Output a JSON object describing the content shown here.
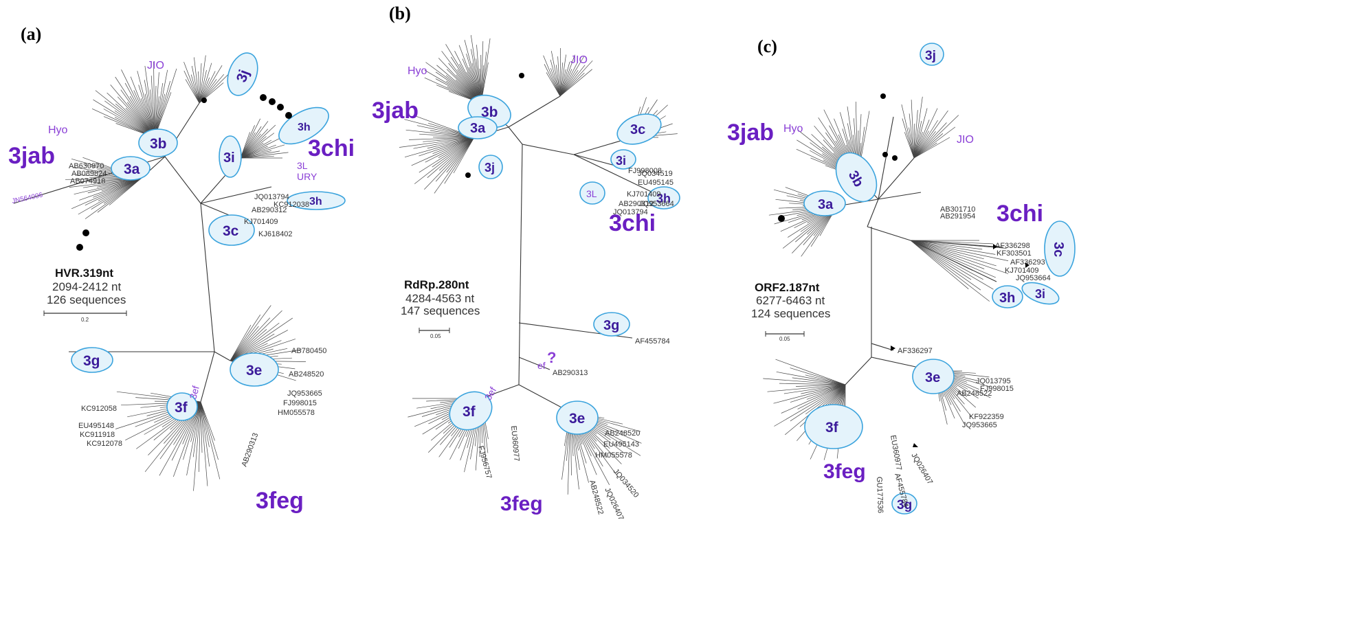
{
  "colors": {
    "group_label": "#6a1fc2",
    "subtype_label": "#3b1a9a",
    "minor_label": "#8a3fd6",
    "ellipse_fill": "#e4f3fb",
    "ellipse_stroke": "#3aa3dd",
    "branch": "#333333"
  },
  "panels": [
    {
      "id": "a",
      "letter": "(a)",
      "region": "HVR.319nt",
      "positions": "2094-2412 nt",
      "sequences": "126 sequences",
      "scale_label": "0.2",
      "group_labels": [
        "3jab",
        "3chi",
        "3feg"
      ],
      "subtypes": [
        "3a",
        "3b",
        "3c",
        "3f",
        "3e",
        "3g",
        "3h",
        "3h",
        "3i",
        "3j"
      ],
      "minor_labels": [
        "JIO",
        "Hyo",
        "3L",
        "URY",
        "3ef"
      ],
      "outlier_leaf": "JN564006",
      "leaves": [
        "JQ013794",
        "KC912038",
        "AB290312",
        "KJ701409",
        "KJ618402",
        "AB780450",
        "AB248520",
        "KC912058",
        "EU495148",
        "KC911918",
        "KC912078",
        "JQ953665",
        "FJ998015",
        "HM055578",
        "AB290313",
        "AB630970",
        "AB089824",
        "AB074918"
      ]
    },
    {
      "id": "b",
      "letter": "(b)",
      "region": "RdRp.280nt",
      "positions": "4284-4563 nt",
      "sequences": "147 sequences",
      "scale_label": "0.05",
      "group_labels": [
        "3jab",
        "3chi",
        "3feg"
      ],
      "subtypes": [
        "3a",
        "3b",
        "3c",
        "3e",
        "3f",
        "3g",
        "3h",
        "3i",
        "3j"
      ],
      "minor_labels": [
        "JIO",
        "Hyo",
        "3L",
        "3ef",
        "ef",
        "?"
      ],
      "outlier_leaf": "AF455784",
      "leaves": [
        "AB290313",
        "JQ034519",
        "EU495145",
        "KJ701409",
        "FJ998008",
        "JQ953664",
        "AB290312",
        "JQ013794",
        "AB248520",
        "AB248522",
        "JQ026407",
        "EU495143",
        "HM055578",
        "JQ034520",
        "EU360977",
        "FJ956757"
      ]
    },
    {
      "id": "c",
      "letter": "(c)",
      "region": "ORF2.187nt",
      "positions": "6277-6463 nt",
      "sequences": "124 sequences",
      "scale_label": "0.05",
      "group_labels": [
        "3jab",
        "3chi",
        "3feg"
      ],
      "subtypes": [
        "3a",
        "3b",
        "3c",
        "3e",
        "3f",
        "3g",
        "3h",
        "3i",
        "3j"
      ],
      "minor_labels": [
        "JIO",
        "Hyo"
      ],
      "outlier_leaf": "AF336297",
      "leaves": [
        "AF336293",
        "AF336298",
        "KF303501",
        "KJ701409",
        "FJ998015",
        "AB248522",
        "JQ953665",
        "JQ013795",
        "KF922359",
        "AB301710",
        "AB291954",
        "AF455784",
        "GU177536",
        "EU360977",
        "JQ953664",
        "JQ026407"
      ]
    }
  ]
}
